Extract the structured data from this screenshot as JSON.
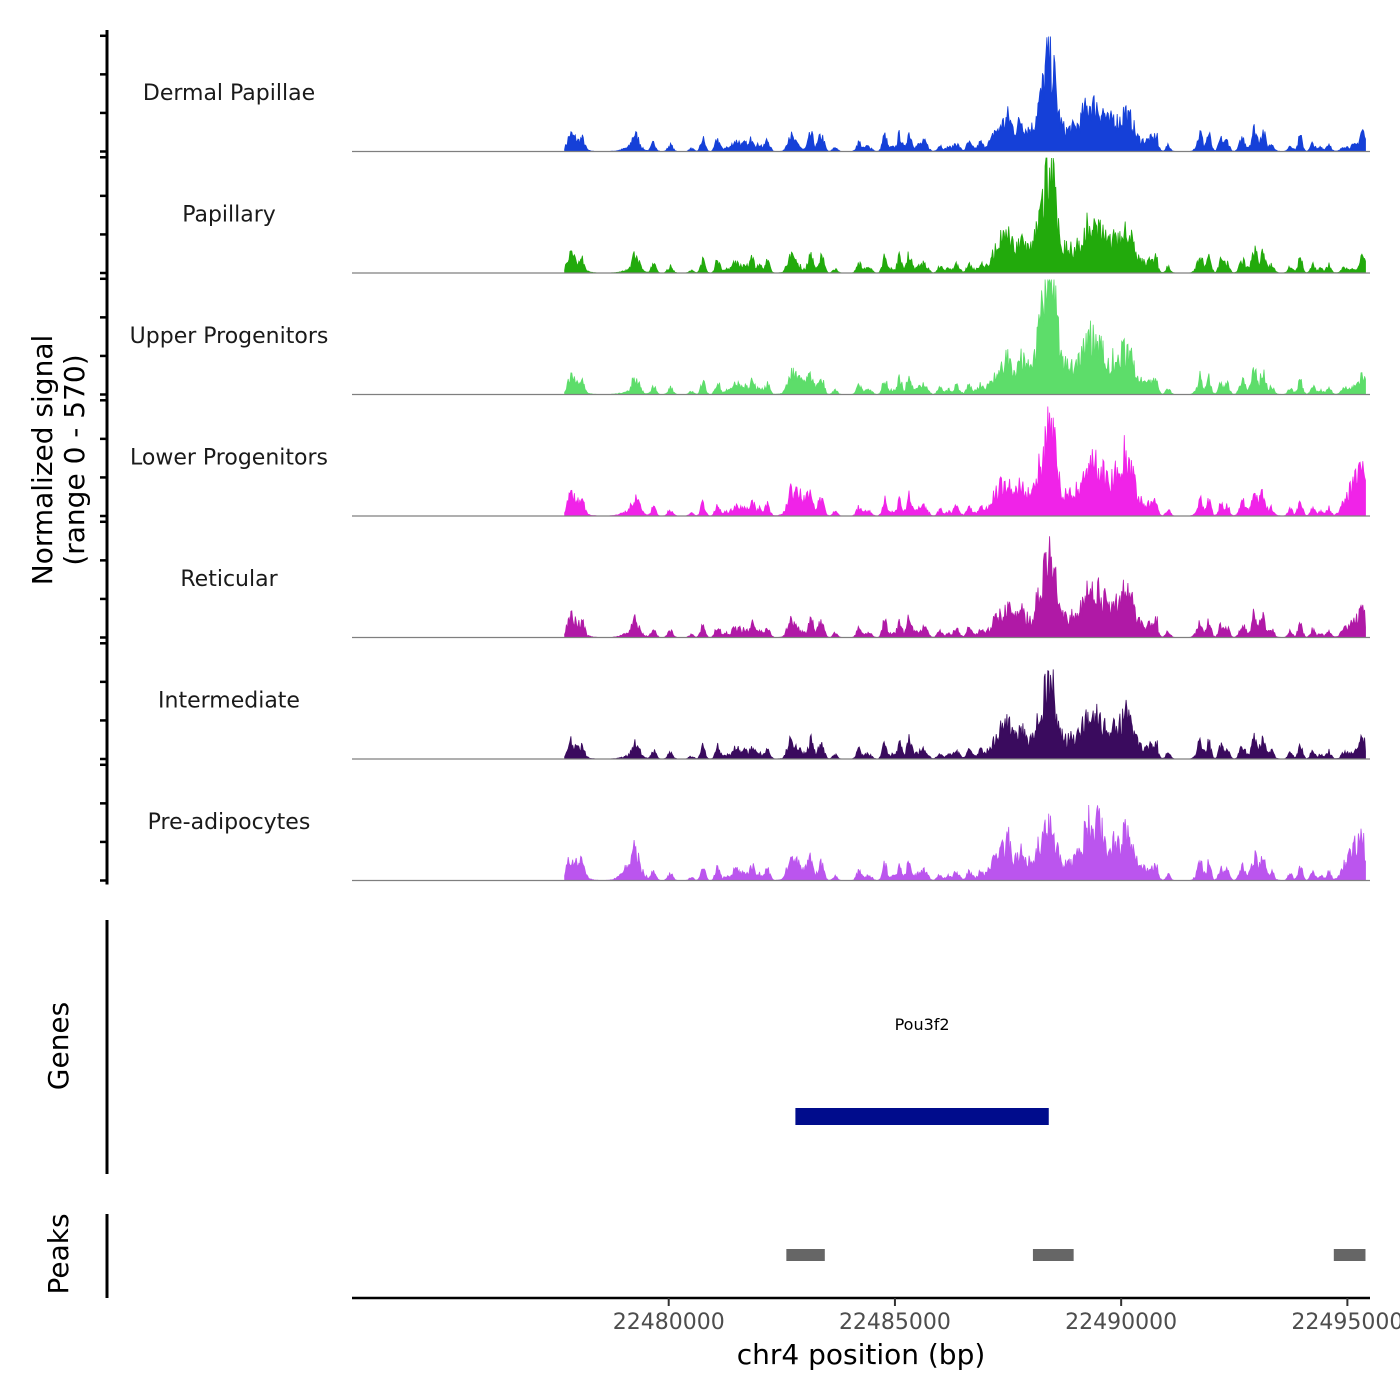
{
  "chart_data": {
    "type": "area",
    "chromosome": "chr4",
    "xlabel": "chr4 position (bp)",
    "xlim": [
      22473000,
      22495500
    ],
    "x_ticks": [
      22480000,
      22485000,
      22490000,
      22495000
    ],
    "x_tick_labels": [
      "22480000",
      "22485000",
      "22490000",
      "22495000"
    ],
    "signal_axis_title_line1": "Normalized signal",
    "signal_axis_title_line2": "(range 0 - 570)",
    "ylim": [
      0,
      570
    ],
    "signal_range": "0 - 570",
    "data_start": 22477700,
    "data_end": 22495400,
    "peak_centers": [
      22477900,
      22479200,
      22482900,
      22487400,
      22488400,
      22489400,
      22490100,
      22493000,
      22495200
    ],
    "series": [
      {
        "name": "Dermal Papillae",
        "color": "#1540d8",
        "peaks": [
          22,
          22,
          8,
          70,
          340,
          130,
          60,
          28,
          30
        ]
      },
      {
        "name": "Papillary",
        "color": "#22aa0c",
        "peaks": [
          30,
          18,
          18,
          90,
          420,
          140,
          65,
          30,
          20
        ]
      },
      {
        "name": "Upper Progenitors",
        "color": "#5ddd6a",
        "peaks": [
          25,
          20,
          60,
          70,
          540,
          150,
          95,
          30,
          40
        ]
      },
      {
        "name": "Lower Progenitors",
        "color": "#f023e8",
        "peaks": [
          38,
          30,
          85,
          80,
          320,
          150,
          160,
          40,
          170
        ]
      },
      {
        "name": "Reticular",
        "color": "#b019a6",
        "peaks": [
          38,
          25,
          20,
          60,
          280,
          140,
          110,
          30,
          85
        ]
      },
      {
        "name": "Intermediate",
        "color": "#3a0b5e",
        "peaks": [
          22,
          18,
          25,
          80,
          280,
          110,
          90,
          22,
          40
        ]
      },
      {
        "name": "Pre-adipocytes",
        "color": "#bb55ee",
        "peaks": [
          60,
          85,
          60,
          120,
          180,
          200,
          110,
          40,
          170
        ]
      }
    ],
    "genes_axis_title": "Genes",
    "genes": [
      {
        "name": "Pou3f2",
        "start": 22482800,
        "end": 22488400,
        "color": "#000c8c"
      }
    ],
    "peaks_axis_title": "Peaks",
    "peak_regions": [
      {
        "start": 22482600,
        "end": 22483450
      },
      {
        "start": 22488050,
        "end": 22488950
      },
      {
        "start": 22494700,
        "end": 22495400
      }
    ],
    "peak_color": "#666666"
  }
}
